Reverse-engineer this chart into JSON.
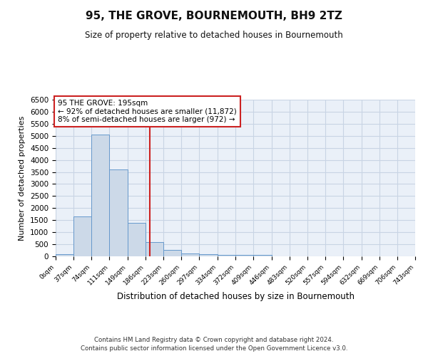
{
  "title": "95, THE GROVE, BOURNEMOUTH, BH9 2TZ",
  "subtitle": "Size of property relative to detached houses in Bournemouth",
  "xlabel": "Distribution of detached houses by size in Bournemouth",
  "ylabel": "Number of detached properties",
  "bar_color": "#ccd9e8",
  "bar_edge_color": "#6699cc",
  "grid_color": "#c8d4e4",
  "vline_x": 195,
  "vline_color": "#cc2222",
  "annotation_title": "95 THE GROVE: 195sqm",
  "annotation_line1": "← 92% of detached houses are smaller (11,872)",
  "annotation_line2": "8% of semi-detached houses are larger (972) →",
  "annotation_box_color": "#cc2222",
  "bin_edges": [
    0,
    37,
    74,
    111,
    149,
    186,
    223,
    260,
    297,
    334,
    372,
    409,
    446,
    483,
    520,
    557,
    594,
    632,
    669,
    706,
    743
  ],
  "bin_counts": [
    75,
    1650,
    5050,
    3600,
    1400,
    600,
    280,
    130,
    75,
    50,
    50,
    50,
    0,
    0,
    0,
    0,
    0,
    0,
    0,
    0
  ],
  "xlim": [
    0,
    743
  ],
  "ylim": [
    0,
    6500
  ],
  "yticks": [
    0,
    500,
    1000,
    1500,
    2000,
    2500,
    3000,
    3500,
    4000,
    4500,
    5000,
    5500,
    6000,
    6500
  ],
  "xtick_labels": [
    "0sqm",
    "37sqm",
    "74sqm",
    "111sqm",
    "149sqm",
    "186sqm",
    "223sqm",
    "260sqm",
    "297sqm",
    "334sqm",
    "372sqm",
    "409sqm",
    "446sqm",
    "483sqm",
    "520sqm",
    "557sqm",
    "594sqm",
    "632sqm",
    "669sqm",
    "706sqm",
    "743sqm"
  ],
  "footer1": "Contains HM Land Registry data © Crown copyright and database right 2024.",
  "footer2": "Contains public sector information licensed under the Open Government Licence v3.0.",
  "background_color": "#ffffff",
  "plot_bg_color": "#eaf0f8"
}
